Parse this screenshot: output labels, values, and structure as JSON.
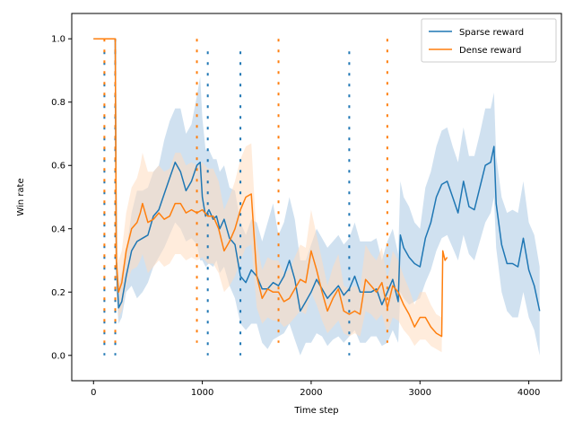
{
  "chart_data": {
    "type": "line",
    "title": "",
    "xlabel": "Time step",
    "ylabel": "Win rate",
    "xlim": [
      -200,
      4300
    ],
    "ylim": [
      -0.08,
      1.08
    ],
    "x_ticks": [
      0,
      1000,
      2000,
      3000,
      4000
    ],
    "y_ticks": [
      0.0,
      0.2,
      0.4,
      0.6,
      0.8,
      1.0
    ],
    "x_tick_labels": [
      "0",
      "1000",
      "2000",
      "3000",
      "4000"
    ],
    "y_tick_labels": [
      "0.0",
      "0.2",
      "0.4",
      "0.6",
      "0.8",
      "1.0"
    ],
    "legend_position": "top-right",
    "grid": false,
    "series": [
      {
        "name": "Sparse reward",
        "color": "#1f77b4",
        "band_color": "#aac8e4",
        "x": [
          0,
          100,
          200,
          210,
          230,
          260,
          300,
          350,
          400,
          450,
          500,
          550,
          600,
          650,
          700,
          750,
          800,
          850,
          900,
          950,
          980,
          1000,
          1030,
          1060,
          1100,
          1130,
          1160,
          1200,
          1250,
          1300,
          1350,
          1400,
          1450,
          1500,
          1550,
          1600,
          1650,
          1700,
          1750,
          1800,
          1850,
          1900,
          1950,
          2000,
          2050,
          2100,
          2150,
          2200,
          2250,
          2300,
          2350,
          2400,
          2450,
          2500,
          2550,
          2600,
          2650,
          2700,
          2750,
          2800,
          2820,
          2850,
          2900,
          2950,
          3000,
          3050,
          3100,
          3150,
          3200,
          3250,
          3300,
          3350,
          3400,
          3450,
          3500,
          3550,
          3600,
          3650,
          3680,
          3700,
          3750,
          3800,
          3850,
          3900,
          3950,
          4000,
          4050,
          4100
        ],
        "y": [
          1.0,
          1.0,
          1.0,
          0.3,
          0.15,
          0.17,
          0.25,
          0.33,
          0.36,
          0.37,
          0.38,
          0.44,
          0.46,
          0.51,
          0.56,
          0.61,
          0.58,
          0.52,
          0.55,
          0.6,
          0.61,
          0.5,
          0.44,
          0.46,
          0.43,
          0.44,
          0.4,
          0.43,
          0.37,
          0.35,
          0.25,
          0.23,
          0.27,
          0.25,
          0.21,
          0.21,
          0.23,
          0.22,
          0.25,
          0.3,
          0.24,
          0.14,
          0.17,
          0.2,
          0.24,
          0.21,
          0.18,
          0.2,
          0.22,
          0.19,
          0.21,
          0.25,
          0.2,
          0.2,
          0.2,
          0.21,
          0.16,
          0.2,
          0.24,
          0.17,
          0.38,
          0.34,
          0.31,
          0.29,
          0.28,
          0.37,
          0.42,
          0.5,
          0.54,
          0.55,
          0.5,
          0.45,
          0.55,
          0.47,
          0.46,
          0.53,
          0.6,
          0.61,
          0.66,
          0.48,
          0.35,
          0.29,
          0.29,
          0.28,
          0.37,
          0.27,
          0.22,
          0.14
        ],
        "lower": [
          1.0,
          1.0,
          1.0,
          0.2,
          0.1,
          0.12,
          0.2,
          0.22,
          0.18,
          0.2,
          0.23,
          0.28,
          0.31,
          0.34,
          0.38,
          0.42,
          0.4,
          0.36,
          0.37,
          0.35,
          0.3,
          0.3,
          0.28,
          0.29,
          0.28,
          0.3,
          0.26,
          0.28,
          0.22,
          0.18,
          0.1,
          0.08,
          0.1,
          0.1,
          0.04,
          0.02,
          0.05,
          0.06,
          0.07,
          0.1,
          0.05,
          0.0,
          0.04,
          0.04,
          0.07,
          0.06,
          0.03,
          0.05,
          0.06,
          0.04,
          0.06,
          0.08,
          0.04,
          0.04,
          0.06,
          0.06,
          0.03,
          0.04,
          0.08,
          0.04,
          0.2,
          0.18,
          0.16,
          0.17,
          0.18,
          0.23,
          0.27,
          0.33,
          0.37,
          0.38,
          0.34,
          0.3,
          0.38,
          0.32,
          0.3,
          0.36,
          0.42,
          0.45,
          0.5,
          0.34,
          0.2,
          0.14,
          0.12,
          0.12,
          0.2,
          0.12,
          0.08,
          0.0
        ],
        "upper": [
          1.0,
          1.0,
          1.0,
          0.38,
          0.22,
          0.26,
          0.33,
          0.45,
          0.52,
          0.52,
          0.53,
          0.58,
          0.6,
          0.68,
          0.74,
          0.78,
          0.78,
          0.7,
          0.73,
          0.82,
          0.88,
          0.75,
          0.65,
          0.65,
          0.62,
          0.62,
          0.58,
          0.6,
          0.53,
          0.52,
          0.42,
          0.38,
          0.43,
          0.42,
          0.36,
          0.42,
          0.48,
          0.38,
          0.42,
          0.5,
          0.43,
          0.3,
          0.3,
          0.35,
          0.4,
          0.37,
          0.34,
          0.36,
          0.38,
          0.35,
          0.37,
          0.42,
          0.36,
          0.36,
          0.36,
          0.37,
          0.3,
          0.36,
          0.4,
          0.32,
          0.55,
          0.5,
          0.47,
          0.42,
          0.4,
          0.53,
          0.58,
          0.66,
          0.71,
          0.72,
          0.66,
          0.61,
          0.72,
          0.63,
          0.63,
          0.7,
          0.78,
          0.78,
          0.83,
          0.63,
          0.5,
          0.45,
          0.46,
          0.45,
          0.55,
          0.42,
          0.38,
          0.28
        ]
      },
      {
        "name": "Dense reward",
        "color": "#ff7f0e",
        "band_color": "#ffdcbf",
        "x": [
          0,
          100,
          200,
          210,
          230,
          260,
          300,
          350,
          400,
          430,
          450,
          500,
          550,
          600,
          650,
          700,
          750,
          800,
          850,
          900,
          950,
          1000,
          1050,
          1100,
          1150,
          1200,
          1250,
          1300,
          1350,
          1400,
          1450,
          1500,
          1550,
          1600,
          1650,
          1700,
          1750,
          1800,
          1850,
          1900,
          1950,
          2000,
          2050,
          2100,
          2150,
          2200,
          2250,
          2300,
          2350,
          2400,
          2450,
          2500,
          2550,
          2600,
          2650,
          2700,
          2750,
          2800,
          2850,
          2900,
          2950,
          3000,
          3050,
          3100,
          3150,
          3200,
          3210,
          3230,
          3250
        ],
        "y": [
          1.0,
          1.0,
          1.0,
          0.3,
          0.2,
          0.23,
          0.33,
          0.4,
          0.42,
          0.45,
          0.48,
          0.42,
          0.43,
          0.45,
          0.43,
          0.44,
          0.48,
          0.48,
          0.45,
          0.46,
          0.45,
          0.46,
          0.44,
          0.44,
          0.4,
          0.33,
          0.36,
          0.4,
          0.46,
          0.5,
          0.51,
          0.25,
          0.18,
          0.21,
          0.2,
          0.2,
          0.17,
          0.18,
          0.21,
          0.24,
          0.23,
          0.33,
          0.27,
          0.2,
          0.14,
          0.18,
          0.21,
          0.14,
          0.13,
          0.14,
          0.13,
          0.24,
          0.22,
          0.2,
          0.23,
          0.15,
          0.22,
          0.2,
          0.16,
          0.13,
          0.09,
          0.12,
          0.12,
          0.09,
          0.07,
          0.06,
          0.33,
          0.3,
          0.31
        ],
        "lower": [
          1.0,
          1.0,
          1.0,
          0.2,
          0.12,
          0.14,
          0.22,
          0.27,
          0.28,
          0.3,
          0.32,
          0.26,
          0.28,
          0.3,
          0.28,
          0.29,
          0.32,
          0.32,
          0.3,
          0.31,
          0.3,
          0.31,
          0.29,
          0.29,
          0.26,
          0.2,
          0.22,
          0.25,
          0.3,
          0.34,
          0.35,
          0.15,
          0.1,
          0.12,
          0.11,
          0.11,
          0.09,
          0.1,
          0.12,
          0.14,
          0.13,
          0.2,
          0.16,
          0.11,
          0.07,
          0.09,
          0.11,
          0.07,
          0.06,
          0.07,
          0.06,
          0.14,
          0.13,
          0.11,
          0.13,
          0.07,
          0.12,
          0.11,
          0.08,
          0.06,
          0.03,
          0.05,
          0.05,
          0.03,
          0.02,
          0.01,
          0.33,
          0.3,
          0.31
        ],
        "upper": [
          1.0,
          1.0,
          1.0,
          0.4,
          0.3,
          0.33,
          0.45,
          0.53,
          0.56,
          0.6,
          0.64,
          0.58,
          0.58,
          0.6,
          0.58,
          0.59,
          0.64,
          0.64,
          0.6,
          0.61,
          0.6,
          0.61,
          0.59,
          0.59,
          0.55,
          0.46,
          0.5,
          0.55,
          0.62,
          0.66,
          0.67,
          0.36,
          0.27,
          0.31,
          0.3,
          0.3,
          0.26,
          0.27,
          0.31,
          0.35,
          0.34,
          0.46,
          0.38,
          0.3,
          0.22,
          0.28,
          0.32,
          0.22,
          0.21,
          0.22,
          0.21,
          0.35,
          0.32,
          0.3,
          0.34,
          0.24,
          0.33,
          0.3,
          0.25,
          0.21,
          0.16,
          0.2,
          0.2,
          0.16,
          0.13,
          0.12,
          0.33,
          0.3,
          0.31
        ]
      }
    ],
    "vertical_markers": [
      {
        "series": "Sparse reward",
        "x": [
          100,
          200,
          1050,
          1350,
          2350
        ]
      },
      {
        "series": "Dense reward",
        "x": [
          100,
          200,
          950,
          1700,
          2700
        ]
      }
    ]
  }
}
